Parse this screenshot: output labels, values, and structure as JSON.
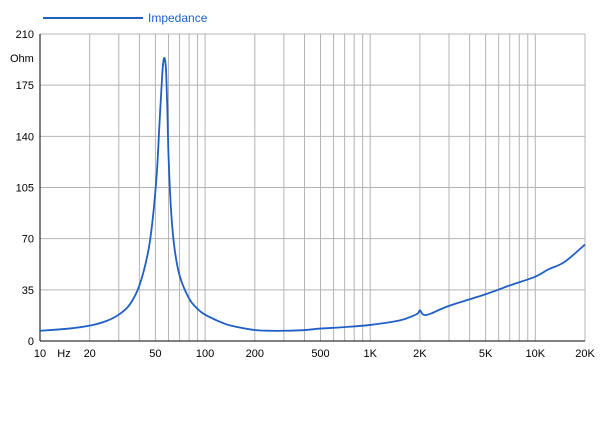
{
  "colors": {
    "series": "#1f5fc6",
    "legend_text": "#1f5fc6",
    "grid": "#b4b4b4",
    "axis": "#000000",
    "background": "#ffffff"
  },
  "chart_data": {
    "type": "line",
    "title": "",
    "xlabel": "",
    "ylabel": "",
    "x_unit_label": "Hz",
    "y_unit_label": "Ohm",
    "x_scale": "log",
    "xlim": [
      10,
      20000
    ],
    "ylim": [
      0,
      210
    ],
    "grid": true,
    "legend_position": "top-left",
    "x_tick_values": [
      10,
      20,
      50,
      100,
      200,
      500,
      1000,
      2000,
      5000,
      10000,
      20000
    ],
    "x_tick_labels": [
      "10",
      "20",
      "50",
      "100",
      "200",
      "500",
      "1K",
      "2K",
      "5K",
      "10K",
      "20K"
    ],
    "y_ticks": [
      0,
      35,
      70,
      105,
      140,
      175,
      210
    ],
    "y_tick_labels": [
      "0",
      "35",
      "70",
      "105",
      "140",
      "175",
      "210"
    ],
    "series": [
      {
        "name": "Impedance",
        "x": [
          10,
          15,
          20,
          25,
          30,
          35,
          40,
          45,
          48,
          51,
          53,
          55,
          56,
          57,
          58,
          59,
          60,
          62,
          65,
          70,
          80,
          90,
          100,
          130,
          150,
          200,
          250,
          300,
          400,
          500,
          700,
          1000,
          1500,
          1800,
          1950,
          2000,
          2100,
          2300,
          3000,
          5000,
          7000,
          10000,
          12000,
          15000,
          20000
        ],
        "values": [
          7,
          8.5,
          10.5,
          13.5,
          18,
          25,
          38,
          60,
          82,
          115,
          150,
          182,
          192,
          193,
          185,
          160,
          128,
          92,
          65,
          45,
          29,
          22,
          18,
          12,
          10,
          7.5,
          7,
          7,
          7.5,
          8.5,
          9.5,
          11,
          14,
          17,
          19,
          21,
          18,
          18.5,
          24,
          32,
          38,
          44,
          49,
          54,
          66
        ]
      }
    ]
  }
}
